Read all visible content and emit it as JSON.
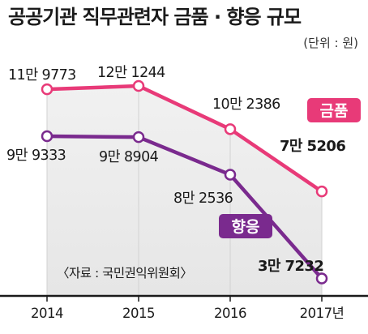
{
  "title": "공공기관 직무관련자 금품 · 향응 규모",
  "unit": "(단위 : 원)",
  "source": "〈자료 : 국민권익위원회〉",
  "chart_data": {
    "type": "line",
    "x": [
      "2014",
      "2015",
      "2016",
      "2017년"
    ],
    "ylim": [
      0,
      120000
    ],
    "grid": false,
    "series": [
      {
        "name": "금품",
        "color": "#e83a78",
        "values": [
          119773,
          121244,
          102386,
          75206
        ],
        "labels": [
          "11만 9773",
          "12만 1244",
          "10만 2386",
          "7만 5206"
        ]
      },
      {
        "name": "향응",
        "color": "#7a2a8e",
        "values": [
          99333,
          98904,
          82536,
          37232
        ],
        "labels": [
          "9만 9333",
          "9만 8904",
          "8만 2536",
          "3만 7232"
        ]
      }
    ]
  }
}
